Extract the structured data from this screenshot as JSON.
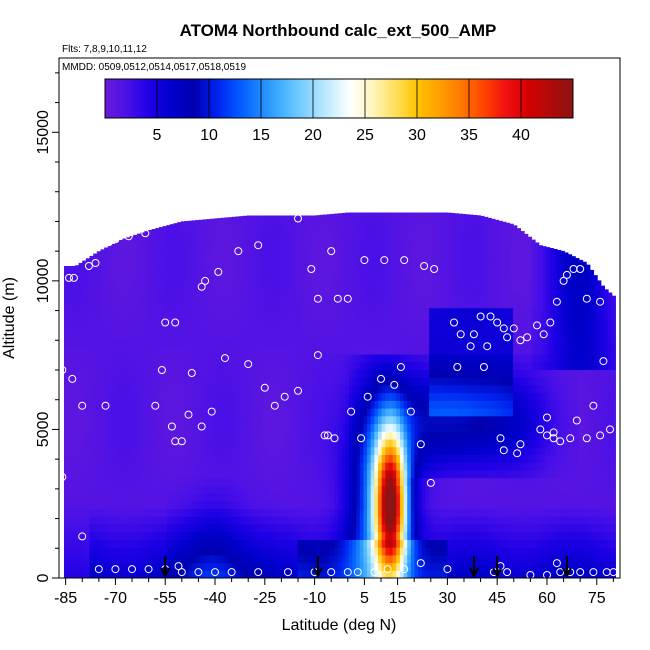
{
  "chart_data": {
    "type": "heatmap",
    "title": "ATOM4 Northbound calc_ext_500_AMP",
    "subtitle_flights": "Flts: 7,8,9,10,11,12",
    "subtitle_dates": "MMDD: 0509,0512,0514,0517,0518,0519",
    "xlabel": "Latitude (deg N)",
    "ylabel": "Altitude (m)",
    "xlim": [
      -87,
      82
    ],
    "ylim": [
      0,
      17500
    ],
    "x_ticks": [
      -85,
      -70,
      -55,
      -40,
      -25,
      -10,
      5,
      15,
      30,
      45,
      60,
      75
    ],
    "x_tick_labels": [
      "-85",
      "-70",
      "-55",
      "-40",
      "-25",
      "-10",
      "5",
      "15",
      "30",
      "45",
      "60",
      "75"
    ],
    "y_ticks": [
      0,
      5000,
      10000,
      15000
    ],
    "y_tick_labels": [
      "0",
      "5000",
      "10000",
      "15000"
    ],
    "colorbar": {
      "min": 0,
      "max": 45,
      "ticks": [
        5,
        10,
        15,
        20,
        25,
        30,
        35,
        40
      ],
      "tick_labels": [
        "5",
        "10",
        "15",
        "20",
        "25",
        "30",
        "35",
        "40"
      ],
      "colors": [
        "#6a1bd8",
        "#4a10e8",
        "#1e00e6",
        "#0000cc",
        "#0000b0",
        "#0020ee",
        "#0058ff",
        "#1e88ff",
        "#48b4ff",
        "#82d2ff",
        "#c2ecff",
        "#ffffff",
        "#fff5bd",
        "#ffe060",
        "#ffc400",
        "#ffa000",
        "#ff7800",
        "#ff4400",
        "#f01010",
        "#d40000",
        "#b00a0a",
        "#8c1414"
      ]
    },
    "field_envelope": [
      [
        -85.5,
        10500
      ],
      [
        -82,
        10500
      ],
      [
        -75,
        11000
      ],
      [
        -68,
        11400
      ],
      [
        -60,
        11700
      ],
      [
        -50,
        12000
      ],
      [
        -40,
        12100
      ],
      [
        -30,
        12200
      ],
      [
        -20,
        12200
      ],
      [
        -10,
        12200
      ],
      [
        0,
        12300
      ],
      [
        10,
        12300
      ],
      [
        20,
        12300
      ],
      [
        30,
        12300
      ],
      [
        40,
        12200
      ],
      [
        50,
        11900
      ],
      [
        58,
        11200
      ],
      [
        65,
        11000
      ],
      [
        72,
        10600
      ],
      [
        77,
        9800
      ],
      [
        80,
        9500
      ]
    ],
    "cloud_max_altitude": 12300,
    "colorbar_value_min": 0,
    "colorbar_value_max": 45,
    "flight_points": [
      [
        -84,
        10100
      ],
      [
        -82.5,
        10100
      ],
      [
        -78,
        10500
      ],
      [
        -76,
        10600
      ],
      [
        -72,
        11300
      ],
      [
        -70,
        11400
      ],
      [
        -66,
        11500
      ],
      [
        -61,
        11600
      ],
      [
        -44,
        9800
      ],
      [
        -43,
        10000
      ],
      [
        -39,
        10300
      ],
      [
        -33,
        11000
      ],
      [
        -27,
        11200
      ],
      [
        -15,
        12100
      ],
      [
        -11,
        10400
      ],
      [
        -5,
        11000
      ],
      [
        -9,
        9400
      ],
      [
        -3,
        9400
      ],
      [
        0,
        9400
      ],
      [
        5,
        10700
      ],
      [
        11,
        10700
      ],
      [
        17,
        10700
      ],
      [
        23,
        10500
      ],
      [
        26,
        10400
      ],
      [
        -55,
        8600
      ],
      [
        -52,
        8600
      ],
      [
        -56,
        7000
      ],
      [
        -47,
        6900
      ],
      [
        -37,
        7400
      ],
      [
        -30,
        7200
      ],
      [
        -25,
        6400
      ],
      [
        -22,
        5800
      ],
      [
        -19,
        6100
      ],
      [
        -15,
        6300
      ],
      [
        -9,
        7500
      ],
      [
        -7,
        4800
      ],
      [
        -6,
        4800
      ],
      [
        -4,
        4700
      ],
      [
        1,
        5600
      ],
      [
        4,
        4700
      ],
      [
        6,
        6100
      ],
      [
        10,
        6700
      ],
      [
        14,
        6500
      ],
      [
        16,
        7100
      ],
      [
        19,
        5600
      ],
      [
        22,
        4500
      ],
      [
        25,
        3200
      ],
      [
        32,
        8600
      ],
      [
        -80,
        5800
      ],
      [
        -73,
        5800
      ],
      [
        -58,
        5800
      ],
      [
        -53,
        5100
      ],
      [
        -48,
        5500
      ],
      [
        -44,
        5100
      ],
      [
        -41,
        5600
      ],
      [
        -52,
        4600
      ],
      [
        -50,
        4600
      ],
      [
        -86,
        7000
      ],
      [
        -86,
        3400
      ],
      [
        -83,
        6700
      ],
      [
        -80,
        1400
      ],
      [
        -50,
        200
      ],
      [
        -45,
        200
      ],
      [
        -40,
        200
      ],
      [
        -35,
        200
      ],
      [
        -27,
        200
      ],
      [
        -18,
        200
      ],
      [
        -10,
        200
      ],
      [
        -5,
        200
      ],
      [
        0,
        200
      ],
      [
        3,
        200
      ],
      [
        8,
        200
      ],
      [
        12,
        300
      ],
      [
        17,
        300
      ],
      [
        22,
        500
      ],
      [
        33,
        7100
      ],
      [
        34,
        8200
      ],
      [
        37,
        7800
      ],
      [
        38,
        8200
      ],
      [
        40,
        8800
      ],
      [
        41,
        7100
      ],
      [
        42,
        7800
      ],
      [
        43,
        8800
      ],
      [
        45,
        8600
      ],
      [
        47,
        8400
      ],
      [
        48,
        8100
      ],
      [
        50,
        8400
      ],
      [
        52,
        8000
      ],
      [
        54,
        8100
      ],
      [
        57,
        8500
      ],
      [
        59,
        8200
      ],
      [
        61,
        8600
      ],
      [
        63,
        9300
      ],
      [
        65,
        10000
      ],
      [
        66,
        10200
      ],
      [
        68,
        10400
      ],
      [
        70,
        10400
      ],
      [
        72,
        9400
      ],
      [
        76,
        9300
      ],
      [
        77,
        7300
      ],
      [
        79,
        5000
      ],
      [
        76,
        4800
      ],
      [
        74,
        5800
      ],
      [
        72,
        4700
      ],
      [
        69,
        5300
      ],
      [
        67,
        4700
      ],
      [
        64,
        4600
      ],
      [
        62,
        4700
      ],
      [
        60,
        5400
      ],
      [
        58,
        5000
      ],
      [
        52,
        4500
      ],
      [
        51,
        4200
      ],
      [
        47,
        4300
      ],
      [
        46,
        4700
      ],
      [
        60,
        4800
      ],
      [
        62,
        4900
      ],
      [
        44,
        200
      ],
      [
        48,
        200
      ],
      [
        55,
        100
      ],
      [
        60,
        100
      ],
      [
        64,
        200
      ],
      [
        67,
        200
      ],
      [
        70,
        200
      ],
      [
        74,
        200
      ],
      [
        78,
        200
      ],
      [
        80,
        200
      ],
      [
        63,
        500
      ],
      [
        46,
        400
      ],
      [
        30,
        300
      ],
      [
        -51,
        400
      ],
      [
        -55,
        300
      ],
      [
        -60,
        300
      ],
      [
        -65,
        300
      ],
      [
        -70,
        300
      ],
      [
        -75,
        300
      ]
    ],
    "arrows_at_latitude": [
      -55,
      -9,
      38,
      45,
      66
    ],
    "annotations": []
  }
}
